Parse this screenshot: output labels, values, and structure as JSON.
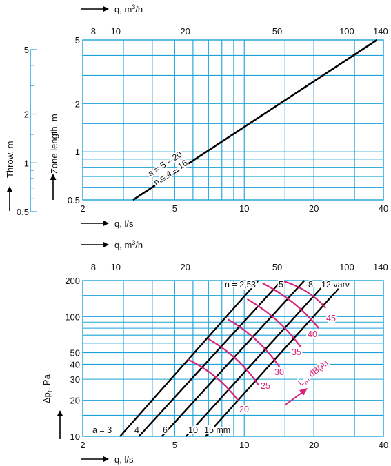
{
  "colors": {
    "grid": "#1ba3d9",
    "line": "#000000",
    "accent": "#d6237a",
    "throw_axis": "#1ba3d9"
  },
  "chart_data": [
    {
      "type": "line",
      "title": "",
      "scale": "log-log",
      "xlabel": "q, l/s",
      "x_top_label": "q, m³/h",
      "ylabel": "Zone length, m",
      "secondary_ylabel": "Throw, m",
      "xlim": [
        2,
        40
      ],
      "ylim": [
        0.5,
        5
      ],
      "x_ticks": [
        "2",
        "5",
        "10",
        "20",
        "40"
      ],
      "x_top_ticks": [
        "8",
        "10",
        "20",
        "50",
        "100",
        "140"
      ],
      "y_ticks": [
        "0.5",
        "1",
        "2",
        "5"
      ],
      "throw_ticks": [
        "0.5",
        "1",
        "2",
        "5"
      ],
      "series": [
        {
          "name": "a = 5 – 20\nn = 4 – 16",
          "x": [
            3.3,
            37.5
          ],
          "y": [
            0.5,
            5.0
          ]
        }
      ],
      "grid": true
    },
    {
      "type": "line",
      "title": "",
      "scale": "log-log",
      "xlabel": "q, l/s",
      "x_top_label": "q, m³/h",
      "ylabel": "Δpt, Pa",
      "xlim": [
        2,
        40
      ],
      "ylim": [
        10,
        200
      ],
      "x_ticks": [
        "2",
        "5",
        "10",
        "20",
        "40"
      ],
      "x_top_ticks": [
        "8",
        "10",
        "20",
        "50",
        "100",
        "140"
      ],
      "y_ticks": [
        "10",
        "20",
        "30",
        "40",
        "50",
        "100",
        "200"
      ],
      "a_series": [
        {
          "name": "a = 3",
          "x": [
            2.9,
            11.5
          ],
          "y": [
            10,
            200
          ]
        },
        {
          "name": "4",
          "x": [
            3.5,
            14.5
          ],
          "y": [
            10,
            200
          ]
        },
        {
          "name": "6",
          "x": [
            4.4,
            18.2
          ],
          "y": [
            10,
            200
          ]
        },
        {
          "name": "10",
          "x": [
            5.6,
            23.0
          ],
          "y": [
            10,
            200
          ]
        },
        {
          "name": "15 mm",
          "x": [
            6.8,
            27.5
          ],
          "y": [
            10,
            200
          ]
        }
      ],
      "n_labels": [
        "n = 2,5",
        "3",
        "5",
        "8",
        "12 varv"
      ],
      "noise_series": [
        {
          "name": "20",
          "x": [
            5.7,
            9.4
          ],
          "y": [
            44,
            20
          ]
        },
        {
          "name": "25",
          "x": [
            7.0,
            11.5
          ],
          "y": [
            65,
            27
          ]
        },
        {
          "name": "30",
          "x": [
            8.5,
            14.2
          ],
          "y": [
            95,
            38
          ]
        },
        {
          "name": "35",
          "x": [
            10.3,
            17.5
          ],
          "y": [
            140,
            56
          ]
        },
        {
          "name": "40",
          "x": [
            12.0,
            21.0
          ],
          "y": [
            190,
            80
          ]
        },
        {
          "name": "45",
          "x": [
            14.5,
            22.5
          ],
          "y": [
            200,
            118
          ]
        }
      ],
      "noise_label": "LA, dB(A)",
      "grid": true
    }
  ],
  "text": {
    "top_x_label": "q, m",
    "sup3": "3",
    "top_x_label_tail": "/h",
    "bottom_x_label": "q, l/s",
    "zone_label": "Zone length, m",
    "throw_label": "Throw, m",
    "dp_label": "Δp",
    "dp_sub": "t",
    "dp_tail": ", Pa",
    "la_label": "L",
    "la_sub": "A",
    "la_tail": ", dB(A)"
  }
}
